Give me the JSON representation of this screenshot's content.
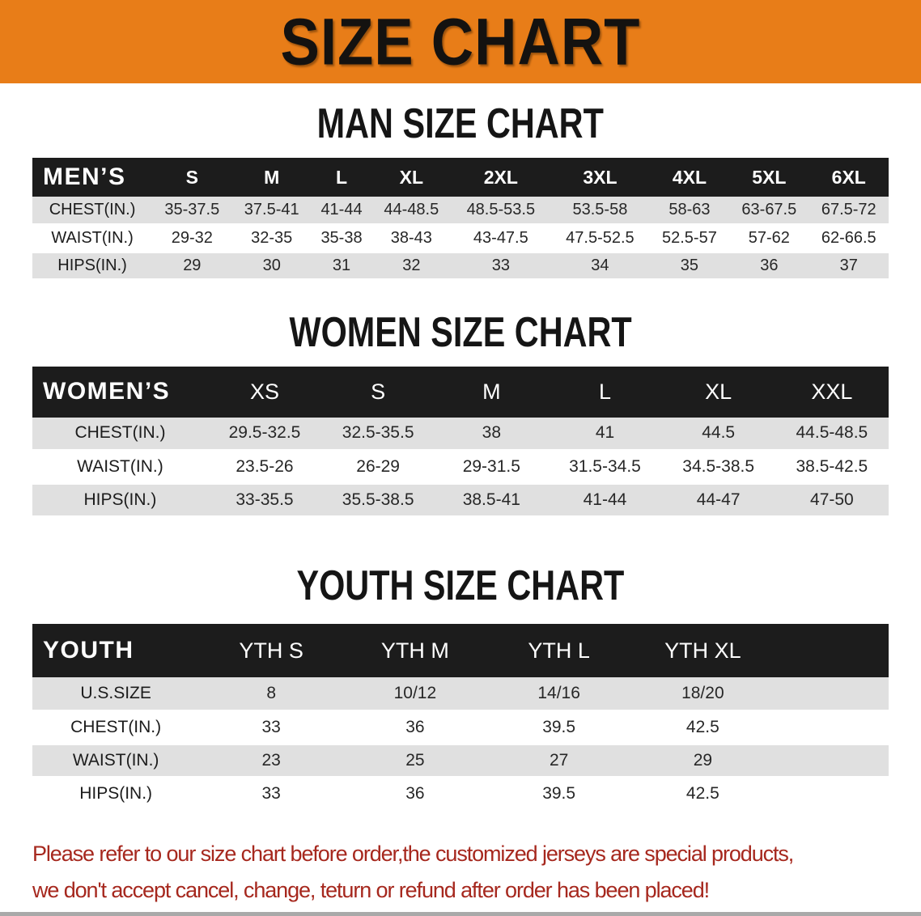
{
  "banner": {
    "title": "SIZE CHART"
  },
  "sections": [
    {
      "id": "men",
      "heading": "MAN SIZE CHART",
      "header_label": "MEN’S",
      "sizes": [
        "S",
        "M",
        "L",
        "XL",
        "2XL",
        "3XL",
        "4XL",
        "5XL",
        "6XL"
      ],
      "rows": [
        {
          "label": "CHEST(IN.)",
          "values": [
            "35-37.5",
            "37.5-41",
            "41-44",
            "44-48.5",
            "48.5-53.5",
            "53.5-58",
            "58-63",
            "63-67.5",
            "67.5-72"
          ]
        },
        {
          "label": "WAIST(IN.)",
          "values": [
            "29-32",
            "32-35",
            "35-38",
            "38-43",
            "43-47.5",
            "47.5-52.5",
            "52.5-57",
            "57-62",
            "62-66.5"
          ]
        },
        {
          "label": "HIPS(IN.)",
          "values": [
            "29",
            "30",
            "31",
            "32",
            "33",
            "34",
            "35",
            "36",
            "37"
          ]
        }
      ]
    },
    {
      "id": "women",
      "heading": "WOMEN SIZE CHART",
      "header_label": "WOMEN’S",
      "sizes": [
        "XS",
        "S",
        "M",
        "L",
        "XL",
        "XXL"
      ],
      "rows": [
        {
          "label": "CHEST(IN.)",
          "values": [
            "29.5-32.5",
            "32.5-35.5",
            "38",
            "41",
            "44.5",
            "44.5-48.5"
          ]
        },
        {
          "label": "WAIST(IN.)",
          "values": [
            "23.5-26",
            "26-29",
            "29-31.5",
            "31.5-34.5",
            "34.5-38.5",
            "38.5-42.5"
          ]
        },
        {
          "label": "HIPS(IN.)",
          "values": [
            "33-35.5",
            "35.5-38.5",
            "38.5-41",
            "41-44",
            "44-47",
            "47-50"
          ]
        }
      ]
    },
    {
      "id": "youth",
      "heading": "YOUTH SIZE CHART",
      "header_label": "YOUTH",
      "sizes": [
        "YTH S",
        "YTH M",
        "YTH L",
        "YTH XL"
      ],
      "trailing_spacer": true,
      "rows": [
        {
          "label": "U.S.SIZE",
          "values": [
            "8",
            "10/12",
            "14/16",
            "18/20"
          ]
        },
        {
          "label": "CHEST(IN.)",
          "values": [
            "33",
            "36",
            "39.5",
            "42.5"
          ]
        },
        {
          "label": "WAIST(IN.)",
          "values": [
            "23",
            "25",
            "27",
            "29"
          ]
        },
        {
          "label": "HIPS(IN.)",
          "values": [
            "33",
            "36",
            "39.5",
            "42.5"
          ]
        }
      ]
    }
  ],
  "footer": {
    "line1": "Please refer to our size chart before order,the customized jerseys are special products,",
    "line2": "we don't accept cancel, change, teturn or refund after order has been placed!"
  },
  "colors": {
    "banner_orange": "#e87d18",
    "table_header_black": "#1c1c1c",
    "row_gray": "#e0e0e0",
    "row_white": "#ffffff",
    "footer_red": "#a6281e"
  }
}
